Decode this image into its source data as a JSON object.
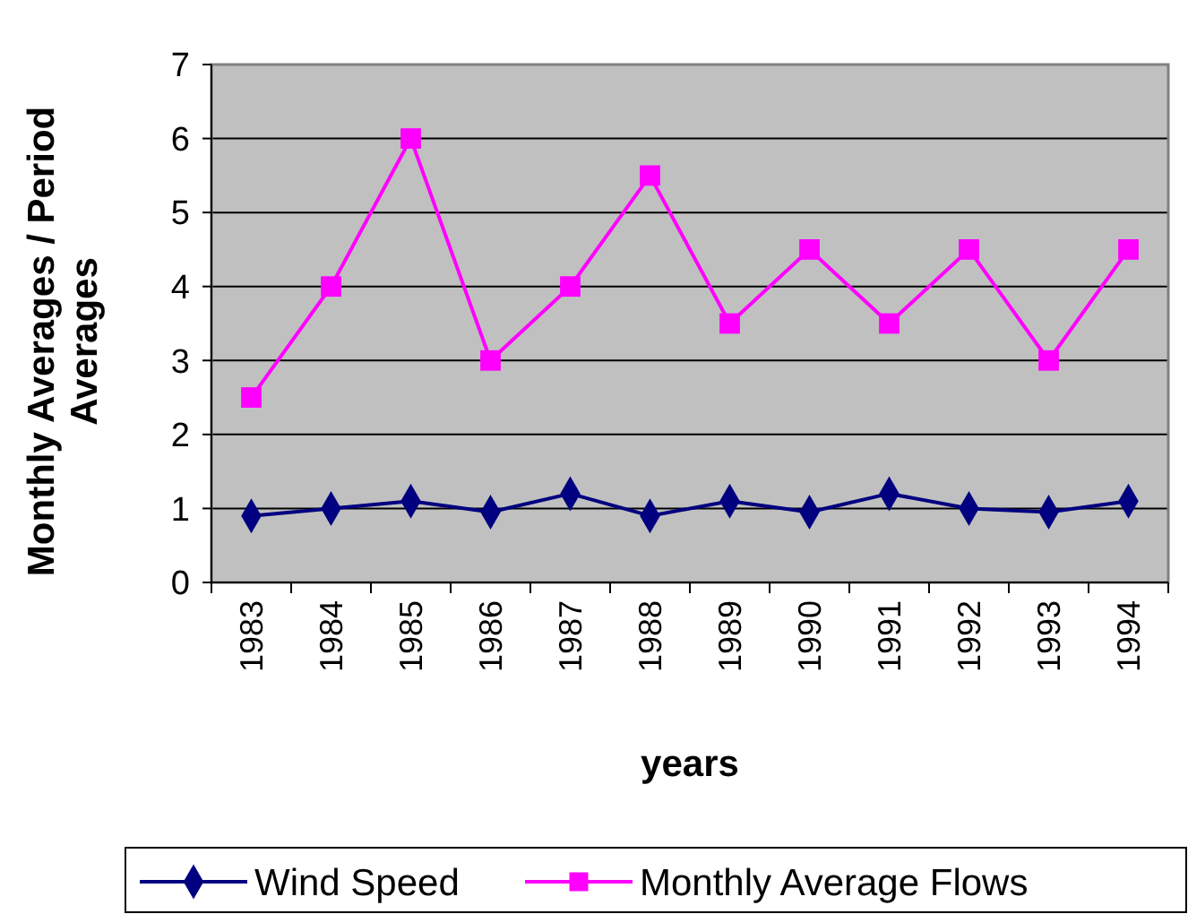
{
  "chart_data": {
    "type": "line",
    "xlabel": "years",
    "ylabel": "Monthly Averages / Period Averages",
    "categories": [
      "1983",
      "1984",
      "1985",
      "1986",
      "1987",
      "1988",
      "1989",
      "1990",
      "1991",
      "1992",
      "1993",
      "1994"
    ],
    "series": [
      {
        "name": "Wind Speed",
        "color": "#000080",
        "marker": "diamond",
        "values": [
          0.9,
          1.0,
          1.1,
          0.95,
          1.2,
          0.9,
          1.1,
          0.95,
          1.2,
          1.0,
          0.95,
          1.1
        ]
      },
      {
        "name": "Monthly Average Flows",
        "color": "#ff00ff",
        "marker": "square",
        "values": [
          2.5,
          4,
          6,
          3,
          4,
          5.5,
          3.5,
          4.5,
          3.5,
          4.5,
          3,
          4.5
        ]
      }
    ],
    "ylim": [
      0,
      7
    ],
    "yticks": [
      0,
      1,
      2,
      3,
      4,
      5,
      6,
      7
    ],
    "grid": "y",
    "legend": "bottom"
  }
}
